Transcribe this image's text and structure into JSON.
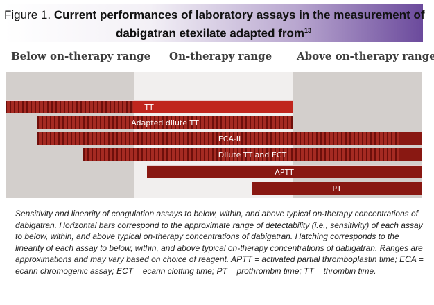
{
  "figure": {
    "label": "Figure 1.",
    "title_part1": "Current performances of laboratory assays in the measurement of",
    "title_part2": "dabigatran etexilate adapted from",
    "reference_sup": "13"
  },
  "range_headers": {
    "below": "Below on-therapy range",
    "on": "On-therapy range",
    "above": "Above on-therapy range"
  },
  "assays": [
    {
      "label": "TT"
    },
    {
      "label": "Adapted dilute TT"
    },
    {
      "label": "ECA-II"
    },
    {
      "label": "Dilute TT and ECT"
    },
    {
      "label": "APTT"
    },
    {
      "label": "PT"
    }
  ],
  "colors": {
    "bar_dark": "#891812",
    "bar_mid": "#c0251d",
    "panel_outer": "#d3cfcc",
    "panel_center": "#f1efee",
    "banner_accent": "#6b4a9c"
  },
  "caption": "Sensitivity and linearity of coagulation assays to below, within, and above typical on-therapy concentrations of dabigatran. Horizontal bars correspond to the approximate range of detectability (i.e., sensitivity) of each assay to below, within, and above typical on-therapy concentrations of dabigatran. Hatching corresponds to the linearity of each assay to below, within, and above typical on-therapy concentrations of dabigatran. Ranges are approximations and may vary based on choice of reagent. APTT = activated partial thromboplastin time; ECA = ecarin chromogenic assay; ECT = ecarin clotting time; PT = prothrombin time; TT = thrombin time."
}
